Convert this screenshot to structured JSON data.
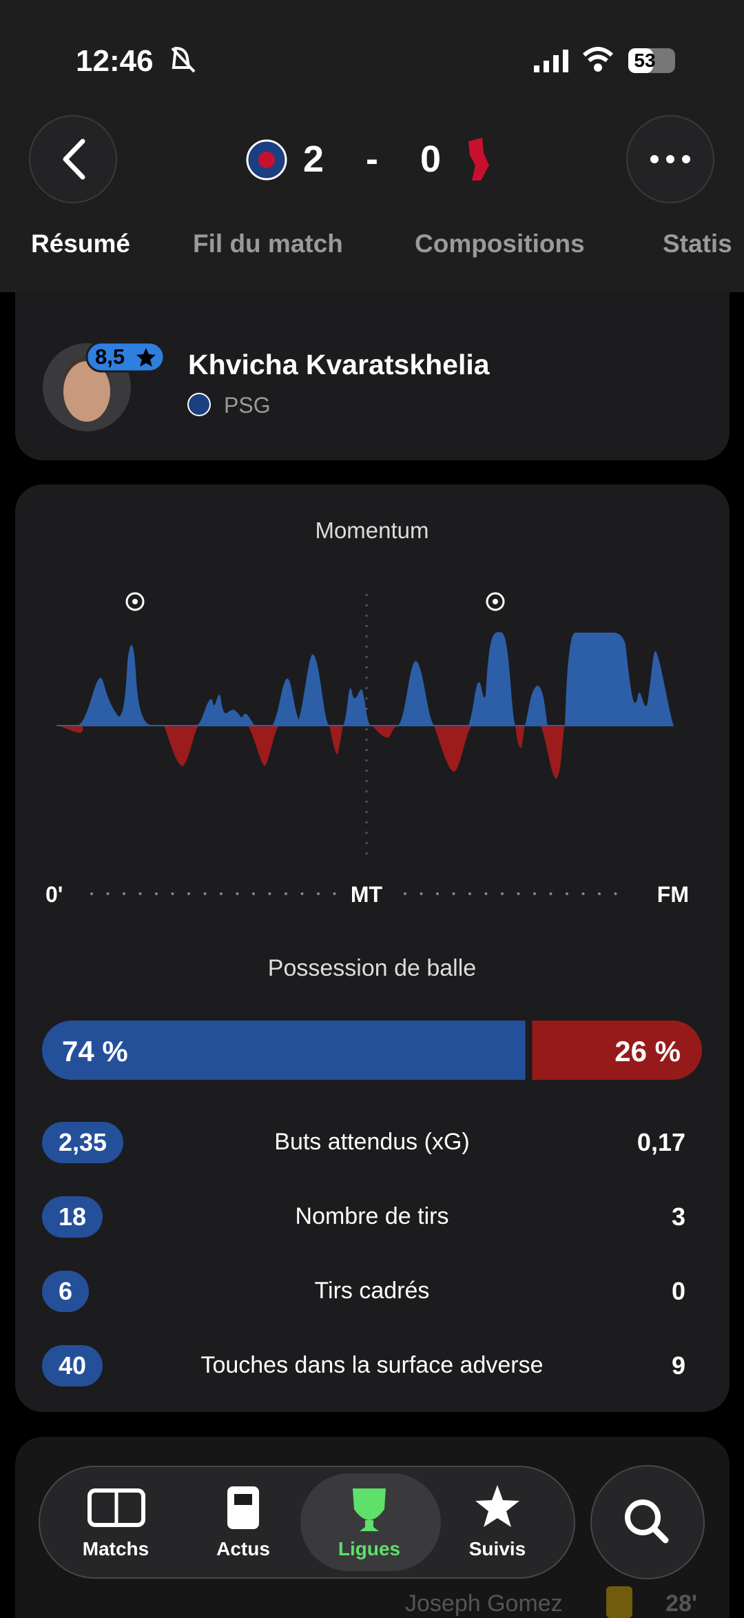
{
  "status_bar": {
    "time": "12:46",
    "battery": "53"
  },
  "header": {
    "home_score": "2",
    "separator": "-",
    "away_score": "0"
  },
  "tabs": [
    "Résumé",
    "Fil du match",
    "Compositions",
    "Statis"
  ],
  "player": {
    "rating": "8,5",
    "name": "Khvicha Kvaratskhelia",
    "team": "PSG"
  },
  "momentum": {
    "title": "Momentum",
    "labels": [
      "0'",
      "MT",
      "FM"
    ]
  },
  "possession": {
    "title": "Possession de balle",
    "home": {
      "value": 74,
      "label": "74 %"
    },
    "away": {
      "value": 26,
      "label": "26 %"
    }
  },
  "stats": [
    {
      "home": "2,35",
      "label": "Buts attendus (xG)",
      "away": "0,17"
    },
    {
      "home": "18",
      "label": "Nombre de tirs",
      "away": "3"
    },
    {
      "home": "6",
      "label": "Tirs cadrés",
      "away": "0"
    },
    {
      "home": "40",
      "label": "Touches dans la surface adverse",
      "away": "9"
    }
  ],
  "background_list": {
    "player": "Joseph Gomez",
    "minute": "28'"
  },
  "nav": {
    "items": [
      "Matchs",
      "Actus",
      "Ligues",
      "Suivis"
    ]
  }
}
